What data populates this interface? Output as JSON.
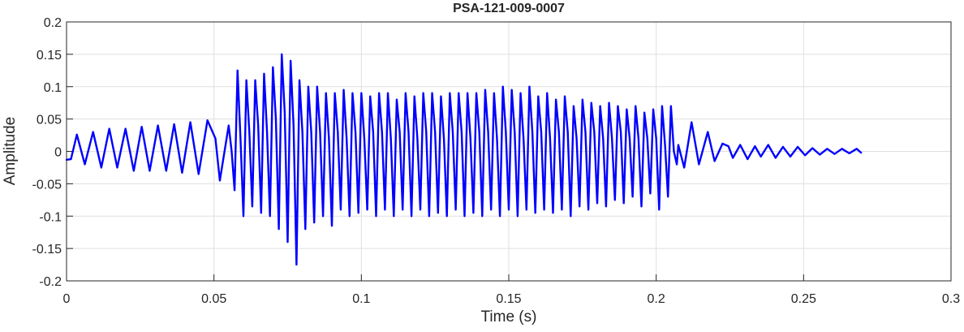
{
  "chart_data": {
    "type": "line",
    "title": "PSA-121-009-0007",
    "xlabel": "Time (s)",
    "ylabel": "Amplitude",
    "color": "#0000ff",
    "grid": true,
    "xlim": [
      0,
      0.3
    ],
    "ylim": [
      -0.2,
      0.2
    ],
    "xticks": [
      0,
      0.05,
      0.1,
      0.15,
      0.2,
      0.25,
      0.3
    ],
    "yticks": [
      -0.2,
      -0.15,
      -0.1,
      -0.05,
      0,
      0.05,
      0.1,
      0.15,
      0.2
    ],
    "x": [
      0,
      0.0015,
      0.0035,
      0.0062,
      0.009,
      0.0118,
      0.0145,
      0.0172,
      0.02,
      0.0228,
      0.0255,
      0.0282,
      0.031,
      0.0338,
      0.0365,
      0.0392,
      0.042,
      0.0448,
      0.0478,
      0.0505,
      0.052,
      0.055,
      0.056,
      0.057,
      0.058,
      0.059,
      0.06,
      0.061,
      0.062,
      0.063,
      0.064,
      0.065,
      0.066,
      0.067,
      0.068,
      0.069,
      0.07,
      0.071,
      0.072,
      0.073,
      0.074,
      0.075,
      0.076,
      0.077,
      0.078,
      0.079,
      0.08,
      0.081,
      0.082,
      0.083,
      0.084,
      0.085,
      0.086,
      0.087,
      0.088,
      0.089,
      0.09,
      0.091,
      0.092,
      0.093,
      0.094,
      0.095,
      0.096,
      0.097,
      0.098,
      0.099,
      0.1,
      0.101,
      0.102,
      0.103,
      0.104,
      0.105,
      0.106,
      0.107,
      0.108,
      0.109,
      0.11,
      0.111,
      0.112,
      0.113,
      0.114,
      0.115,
      0.116,
      0.117,
      0.118,
      0.119,
      0.12,
      0.121,
      0.122,
      0.123,
      0.124,
      0.125,
      0.126,
      0.127,
      0.128,
      0.129,
      0.13,
      0.131,
      0.132,
      0.133,
      0.134,
      0.135,
      0.136,
      0.137,
      0.138,
      0.139,
      0.14,
      0.141,
      0.142,
      0.143,
      0.144,
      0.145,
      0.146,
      0.147,
      0.148,
      0.149,
      0.15,
      0.151,
      0.152,
      0.153,
      0.154,
      0.155,
      0.156,
      0.157,
      0.158,
      0.159,
      0.16,
      0.161,
      0.162,
      0.163,
      0.164,
      0.165,
      0.166,
      0.167,
      0.168,
      0.169,
      0.17,
      0.171,
      0.172,
      0.173,
      0.174,
      0.175,
      0.176,
      0.177,
      0.178,
      0.179,
      0.18,
      0.181,
      0.182,
      0.183,
      0.184,
      0.185,
      0.186,
      0.187,
      0.188,
      0.189,
      0.19,
      0.191,
      0.192,
      0.193,
      0.194,
      0.195,
      0.196,
      0.197,
      0.198,
      0.199,
      0.2,
      0.201,
      0.202,
      0.203,
      0.204,
      0.205,
      0.206,
      0.207,
      0.2075,
      0.2095,
      0.212,
      0.2145,
      0.2175,
      0.2198,
      0.2225,
      0.2245,
      0.226,
      0.2285,
      0.231,
      0.2335,
      0.2355,
      0.238,
      0.2405,
      0.243,
      0.2455,
      0.248,
      0.2505,
      0.253,
      0.2555,
      0.258,
      0.2605,
      0.263,
      0.2655,
      0.268,
      0.2695
    ],
    "values": [
      -0.013,
      -0.012,
      0.026,
      -0.02,
      0.03,
      -0.025,
      0.035,
      -0.025,
      0.035,
      -0.03,
      0.038,
      -0.03,
      0.04,
      -0.03,
      0.042,
      -0.033,
      0.045,
      -0.035,
      0.048,
      0.02,
      -0.045,
      0.04,
      0.0,
      -0.06,
      0.125,
      0.02,
      -0.1,
      0.11,
      0.03,
      -0.085,
      0.11,
      0.04,
      -0.095,
      0.12,
      0.03,
      -0.1,
      0.13,
      0.05,
      -0.12,
      0.15,
      0.06,
      -0.14,
      0.14,
      0.04,
      -0.175,
      0.11,
      0.03,
      -0.12,
      0.1,
      0.03,
      -0.11,
      0.1,
      0.03,
      -0.1,
      0.09,
      0.02,
      -0.115,
      0.09,
      0.03,
      -0.09,
      0.095,
      0.02,
      -0.1,
      0.09,
      0.03,
      -0.095,
      0.09,
      0.02,
      -0.09,
      0.085,
      0.03,
      -0.1,
      0.09,
      0.03,
      -0.09,
      0.09,
      0.02,
      -0.1,
      0.08,
      0.03,
      -0.09,
      0.09,
      0.03,
      -0.1,
      0.085,
      0.02,
      -0.09,
      0.09,
      0.03,
      -0.1,
      0.09,
      0.03,
      -0.095,
      0.085,
      0.02,
      -0.1,
      0.09,
      0.03,
      -0.09,
      0.09,
      0.03,
      -0.1,
      0.09,
      0.02,
      -0.095,
      0.09,
      0.03,
      -0.1,
      0.095,
      0.03,
      -0.09,
      0.09,
      0.02,
      -0.1,
      0.1,
      0.03,
      -0.09,
      0.095,
      0.03,
      -0.1,
      0.09,
      0.02,
      -0.09,
      0.1,
      0.03,
      -0.095,
      0.085,
      0.03,
      -0.09,
      0.09,
      0.02,
      -0.095,
      0.08,
      0.03,
      -0.09,
      0.085,
      0.03,
      -0.1,
      0.07,
      0.02,
      -0.085,
      0.08,
      0.03,
      -0.09,
      0.075,
      0.03,
      -0.08,
      0.07,
      0.02,
      -0.085,
      0.075,
      0.02,
      -0.075,
      0.07,
      0.03,
      -0.08,
      0.065,
      0.02,
      -0.07,
      0.07,
      0.02,
      -0.085,
      0.06,
      0.02,
      -0.065,
      0.065,
      0.02,
      -0.09,
      0.07,
      0.01,
      -0.07,
      0.07,
      0.0,
      -0.02,
      0.01,
      -0.025,
      0.045,
      -0.02,
      0.03,
      -0.015,
      0.012,
      0.008,
      -0.01,
      0.01,
      -0.012,
      0.008,
      -0.008,
      0.01,
      -0.01,
      0.007,
      -0.008,
      0.007,
      -0.006,
      0.005,
      -0.005,
      0.004,
      -0.004,
      0.004,
      -0.003,
      0.004,
      -0.002
    ]
  }
}
